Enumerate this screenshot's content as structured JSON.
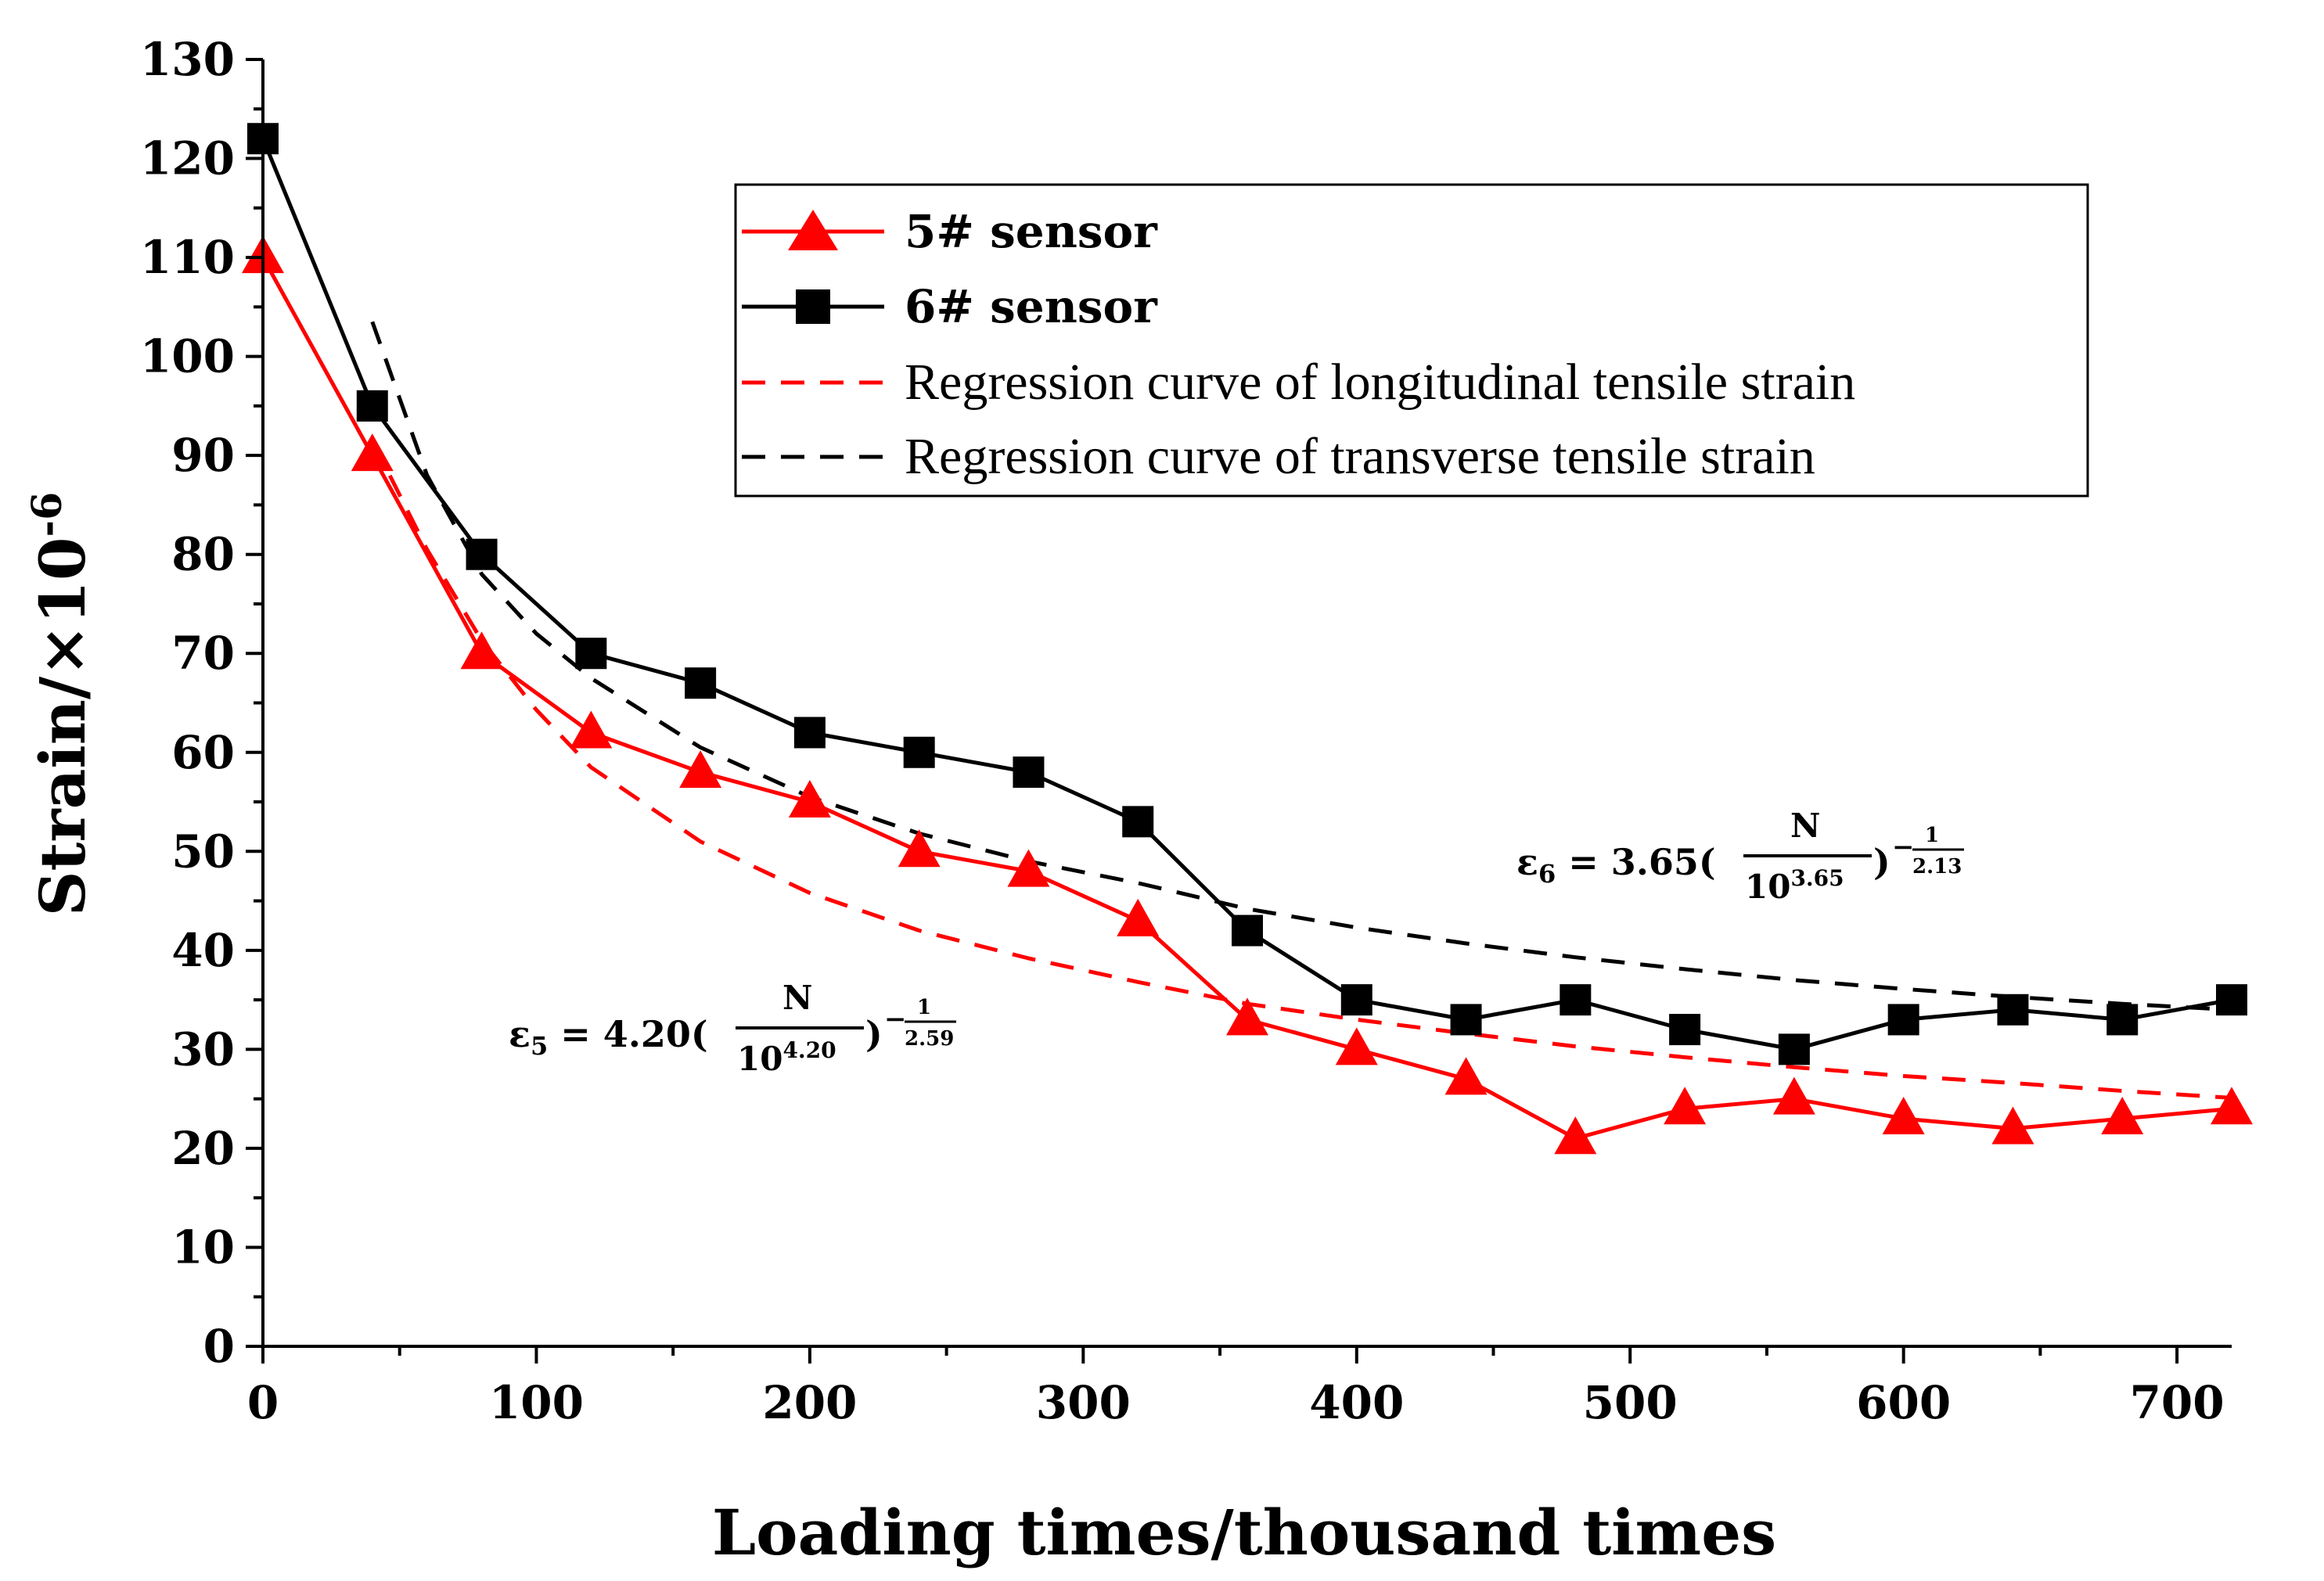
{
  "chart_data": {
    "type": "line",
    "title": "",
    "xlabel": "Loading times/thousand times",
    "ylabel_base": "Strain/×10",
    "ylabel_exp": "-6",
    "xlim": [
      0,
      720
    ],
    "ylim": [
      0,
      130
    ],
    "x_ticks": [
      0,
      100,
      200,
      300,
      400,
      500,
      600,
      700
    ],
    "y_ticks": [
      0,
      10,
      20,
      30,
      40,
      50,
      60,
      70,
      80,
      90,
      100,
      110,
      120,
      130
    ],
    "grid": false,
    "legend_position": "top-right",
    "series": [
      {
        "name": "5# sensor",
        "color": "#ff0000",
        "marker": "triangle",
        "style": "solid",
        "x": [
          0,
          40,
          80,
          120,
          160,
          200,
          240,
          280,
          320,
          360,
          400,
          440,
          480,
          520,
          560,
          600,
          640,
          680,
          720
        ],
        "y": [
          110,
          90,
          70,
          62,
          58,
          55,
          50,
          48,
          43,
          33,
          30,
          27,
          21,
          24,
          25,
          23,
          22,
          23,
          24
        ]
      },
      {
        "name": "6# sensor",
        "color": "#000000",
        "marker": "square",
        "style": "solid",
        "x": [
          0,
          40,
          80,
          120,
          160,
          200,
          240,
          280,
          320,
          360,
          400,
          440,
          480,
          520,
          560,
          600,
          640,
          680,
          720
        ],
        "y": [
          122,
          95,
          80,
          70,
          67,
          62,
          60,
          58,
          53,
          42,
          35,
          33,
          35,
          32,
          30,
          33,
          34,
          33,
          35
        ]
      },
      {
        "name": "Regression curve of longitudinal tensile strain",
        "color": "#ff0000",
        "style": "dashed",
        "x": [
          40,
          60,
          80,
          100,
          120,
          160,
          200,
          240,
          280,
          320,
          360,
          400,
          440,
          480,
          520,
          560,
          600,
          640,
          680,
          720
        ],
        "y": [
          91.5,
          80.5,
          71.3,
          64.3,
          58.5,
          51.0,
          45.8,
          42.0,
          39.2,
          36.8,
          34.6,
          33.0,
          31.6,
          30.3,
          29.2,
          28.2,
          27.3,
          26.6,
          25.8,
          25.1
        ]
      },
      {
        "name": "Regression curve of transverse tensile strain",
        "color": "#000000",
        "style": "dashed",
        "x": [
          40,
          60,
          80,
          100,
          120,
          160,
          200,
          240,
          280,
          320,
          360,
          400,
          440,
          480,
          520,
          560,
          600,
          640,
          680,
          720
        ],
        "y": [
          103.5,
          88.0,
          78.0,
          72.0,
          67.5,
          60.5,
          55.5,
          51.8,
          49.0,
          46.8,
          44.2,
          42.3,
          40.7,
          39.3,
          38.1,
          37.0,
          36.1,
          35.3,
          34.6,
          34.0
        ]
      }
    ],
    "annotations": [
      {
        "sym": "ε",
        "sub": "6",
        "coef": " = 3.65(",
        "num": "N",
        "den_base": "10",
        "den_exp": "3.65",
        "close": ")",
        "exp_num": "1",
        "exp_den": "2.13"
      },
      {
        "sym": "ε",
        "sub": "5",
        "coef": " = 4.20(",
        "num": "N",
        "den_base": "10",
        "den_exp": "4.20",
        "close": ")",
        "exp_num": "1",
        "exp_den": "2.59"
      }
    ]
  }
}
